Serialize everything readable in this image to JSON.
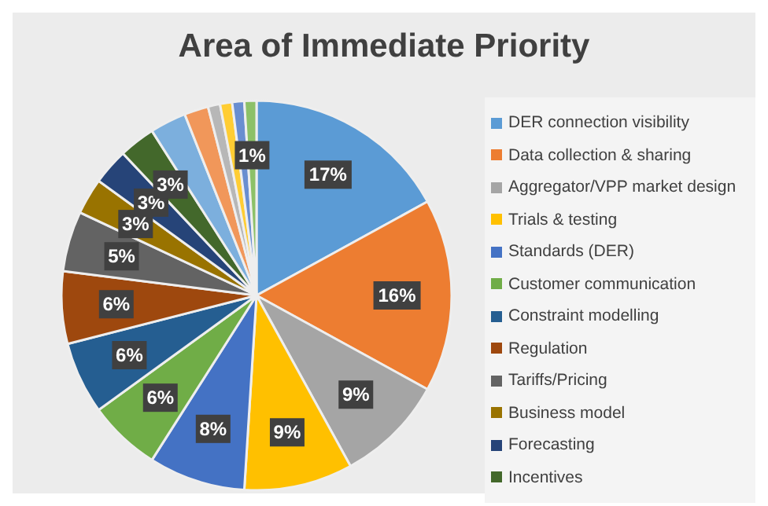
{
  "chart_data": {
    "type": "pie",
    "title": "Area of Immediate Priority",
    "categories": [
      "DER connection visibility",
      "Data collection & sharing",
      "Aggregator/VPP market design",
      "Trials & testing",
      "Standards (DER)",
      "Customer communication",
      "Constraint modelling",
      "Regulation",
      "Tariffs/Pricing",
      "Business model",
      "Forecasting",
      "Incentives",
      null,
      null,
      null,
      null,
      null,
      null
    ],
    "values": [
      17,
      16,
      9,
      9,
      8,
      6,
      6,
      6,
      5,
      3,
      3,
      3,
      3,
      2,
      1,
      1,
      1,
      1
    ],
    "colors": [
      "#5b9bd5",
      "#ed7d31",
      "#a5a5a5",
      "#ffc000",
      "#4472c4",
      "#70ad47",
      "#255e91",
      "#9e480e",
      "#636363",
      "#997300",
      "#264478",
      "#43682b",
      "#7cafdd",
      "#f1975a",
      "#b7b7b7",
      "#ffcd33",
      "#698ed0",
      "#8cc168"
    ],
    "value_labels": [
      "17%",
      "16%",
      "9%",
      "9%",
      "8%",
      "6%",
      "6%",
      "6%",
      "5%",
      "3%",
      "3%",
      "3%",
      null,
      null,
      null,
      null,
      null,
      "1%"
    ],
    "legend": "right"
  }
}
